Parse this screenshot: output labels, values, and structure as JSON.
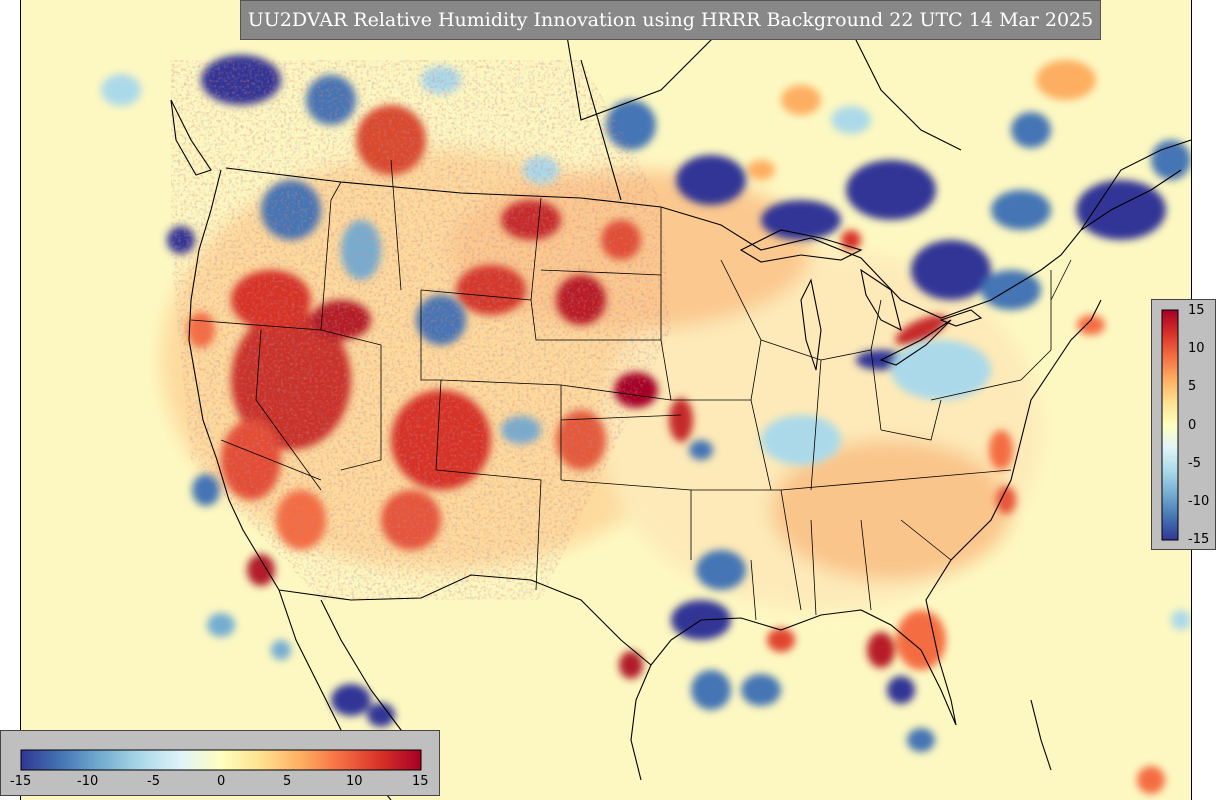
{
  "title": "UU2DVAR Relative Humidity Innovation using HRRR Background 22 UTC 14 Mar 2025",
  "colors": {
    "background_field": "#fdf8c2",
    "title_box": "#888888",
    "panel": "#bfbfbf",
    "colormap": "RdYlBu_r (diverging)"
  },
  "colorbar": {
    "min": -15,
    "max": 15,
    "vertical_ticks": [
      "15",
      "10",
      "5",
      "0",
      "-5",
      "-10",
      "-15"
    ],
    "horizontal_ticks": [
      "-15",
      "-10",
      "-5",
      "0",
      "5",
      "10",
      "15"
    ],
    "stops": [
      "#313695",
      "#4575b4",
      "#74add1",
      "#abd9e9",
      "#e0f3f8",
      "#ffffbf",
      "#fee090",
      "#fdae61",
      "#f46d43",
      "#d73027",
      "#a50026"
    ]
  },
  "map": {
    "projection": "Lambert Conformal",
    "region": "CONUS",
    "features": [
      "coastlines",
      "state borders",
      "country borders"
    ]
  }
}
